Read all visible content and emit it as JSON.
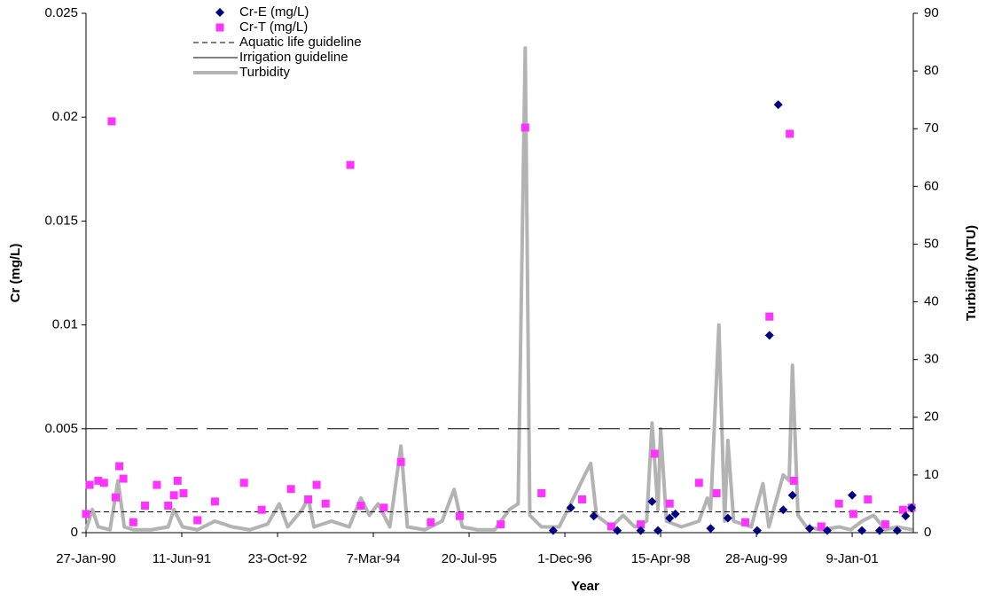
{
  "chart_data": {
    "type": "scatter",
    "x_label": "Year",
    "y_label": "Cr (mg/L)",
    "y2_label": "Turbidity (NTU)",
    "xlim": [
      "1990-01-27",
      "2001-11-24"
    ],
    "xticks": [
      {
        "value": "1990-01-27",
        "label": "27-Jan-90"
      },
      {
        "value": "1991-06-11",
        "label": "11-Jun-91"
      },
      {
        "value": "1992-10-23",
        "label": "23-Oct-92"
      },
      {
        "value": "1994-03-07",
        "label": "7-Mar-94"
      },
      {
        "value": "1995-07-20",
        "label": "20-Jul-95"
      },
      {
        "value": "1996-12-01",
        "label": "1-Dec-96"
      },
      {
        "value": "1998-04-15",
        "label": "15-Apr-98"
      },
      {
        "value": "1999-08-28",
        "label": "28-Aug-99"
      },
      {
        "value": "2001-01-09",
        "label": "9-Jan-01"
      }
    ],
    "ylim": [
      0,
      0.025
    ],
    "yticks": [
      0,
      0.005,
      0.01,
      0.015,
      0.02,
      0.025
    ],
    "y2lim": [
      0,
      90
    ],
    "y2ticks": [
      0,
      10,
      20,
      30,
      40,
      50,
      60,
      70,
      80,
      90
    ],
    "series": [
      {
        "name": "Cr-E (mg/L)",
        "kind": "scatter",
        "marker": "diamond",
        "color": "#000080",
        "x": [
          "1996-10-01",
          "1997-01-01",
          "1997-05-01",
          "1997-09-01",
          "1998-01-01",
          "1998-03-01",
          "1998-04-01",
          "1998-06-01",
          "1998-07-01",
          "1999-01-01",
          "1999-04-01",
          "1999-09-01",
          "1999-11-04",
          "1999-12-20",
          "2000-01-15",
          "2000-03-03",
          "2000-06-01",
          "2000-09-01",
          "2001-01-09",
          "2001-03-01",
          "2001-06-01",
          "2001-09-01",
          "2001-10-15",
          "2001-11-15"
        ],
        "values": [
          0.0001,
          0.0012,
          0.0008,
          0.0001,
          0.0001,
          0.0015,
          0.0001,
          0.0007,
          0.0009,
          0.0002,
          0.0007,
          0.0001,
          0.0095,
          0.0206,
          0.0011,
          0.0018,
          0.0002,
          0.0001,
          0.0018,
          0.0001,
          0.0001,
          0.0001,
          0.0008,
          0.0012
        ]
      },
      {
        "name": "Cr-T (mg/L)",
        "kind": "scatter",
        "marker": "square",
        "color": "#ff33ff",
        "x": [
          "1990-01-27",
          "1990-02-15",
          "1990-04-01",
          "1990-05-01",
          "1990-06-10",
          "1990-07-01",
          "1990-07-20",
          "1990-08-10",
          "1990-10-01",
          "1990-12-01",
          "1991-02-01",
          "1991-04-01",
          "1991-05-01",
          "1991-05-20",
          "1991-06-20",
          "1991-09-01",
          "1991-12-01",
          "1992-05-01",
          "1992-08-01",
          "1993-01-01",
          "1993-04-01",
          "1993-05-15",
          "1993-07-01",
          "1993-11-07",
          "1994-01-01",
          "1994-05-01",
          "1994-07-29",
          "1995-01-01",
          "1995-06-01",
          "1996-01-01",
          "1996-05-08",
          "1996-08-01",
          "1997-03-01",
          "1997-08-01",
          "1998-01-01",
          "1998-03-15",
          "1998-06-01",
          "1998-11-01",
          "1999-02-01",
          "1999-07-01",
          "1999-11-04",
          "2000-02-18",
          "2000-03-10",
          "2000-08-01",
          "2000-11-01",
          "2001-01-15",
          "2001-04-01",
          "2001-07-01",
          "2001-10-01",
          "2001-11-15"
        ],
        "values": [
          0.0009,
          0.0023,
          0.0025,
          0.0024,
          0.0198,
          0.0017,
          0.0032,
          0.0026,
          0.0005,
          0.0013,
          0.0023,
          0.0013,
          0.0018,
          0.0025,
          0.0019,
          0.0006,
          0.0015,
          0.0024,
          0.0011,
          0.0021,
          0.0016,
          0.0023,
          0.0014,
          0.0177,
          0.0013,
          0.0012,
          0.0034,
          0.0005,
          0.0008,
          0.0004,
          0.0195,
          0.0019,
          0.0016,
          0.0003,
          0.0004,
          0.0038,
          0.0014,
          0.0024,
          0.0019,
          0.0005,
          0.0104,
          0.0192,
          0.0025,
          0.0003,
          0.0014,
          0.0009,
          0.0016,
          0.0004,
          0.0011,
          0.0012
        ]
      },
      {
        "name": "Aquatic life guideline",
        "kind": "hline",
        "dash": "short",
        "color": "#000000",
        "value": 0.001
      },
      {
        "name": "Irrigation guideline",
        "kind": "hline",
        "dash": "long",
        "color": "#000000",
        "value": 0.005
      },
      {
        "name": "Turbidity",
        "kind": "line",
        "axis": "y2",
        "color": "#b3b3b3",
        "x": [
          "1990-01-27",
          "1990-03-01",
          "1990-04-01",
          "1990-06-01",
          "1990-07-13",
          "1990-08-15",
          "1990-10-01",
          "1991-01-01",
          "1991-04-01",
          "1991-05-01",
          "1991-06-15",
          "1991-09-01",
          "1991-12-01",
          "1992-03-01",
          "1992-06-01",
          "1992-09-01",
          "1992-11-01",
          "1992-12-15",
          "1993-03-01",
          "1993-04-01",
          "1993-05-01",
          "1993-08-01",
          "1993-11-01",
          "1994-01-01",
          "1994-02-15",
          "1994-04-01",
          "1994-06-01",
          "1994-07-29",
          "1994-09-01",
          "1994-12-01",
          "1995-03-01",
          "1995-05-03",
          "1995-06-15",
          "1995-09-01",
          "1995-12-01",
          "1996-02-15",
          "1996-04-01",
          "1996-05-08",
          "1996-06-01",
          "1996-08-01",
          "1996-11-01",
          "1997-01-15",
          "1997-03-15",
          "1997-04-15",
          "1997-05-15",
          "1997-08-01",
          "1997-10-01",
          "1997-12-01",
          "1998-02-01",
          "1998-03-01",
          "1998-04-01",
          "1998-04-15",
          "1998-05-15",
          "1998-08-01",
          "1998-11-01",
          "1998-12-15",
          "1999-01-01",
          "1999-02-13",
          "1999-03-15",
          "1999-04-01",
          "1999-05-01",
          "1999-08-01",
          "1999-10-01",
          "1999-11-01",
          "2000-01-15",
          "2000-02-15",
          "2000-03-03",
          "2000-04-01",
          "2000-05-15",
          "2000-08-01",
          "2000-11-01",
          "2001-01-01",
          "2001-03-01",
          "2001-05-01",
          "2001-07-01",
          "2001-09-01",
          "2001-11-20"
        ],
        "values": [
          0.5,
          4,
          1,
          0.5,
          9,
          1,
          0.5,
          0.5,
          1,
          4,
          1,
          0.5,
          2,
          1,
          0.5,
          1.5,
          5,
          1,
          4,
          6,
          1,
          2,
          1,
          6,
          3,
          5,
          1,
          15,
          1,
          0.5,
          2,
          7.5,
          1,
          0.5,
          0.5,
          4,
          5,
          84,
          3,
          1,
          1,
          6,
          10,
          12,
          3,
          1,
          3,
          1,
          2,
          19,
          4,
          18,
          2,
          1,
          2,
          6,
          4,
          36,
          2,
          16,
          2,
          1,
          8.5,
          1,
          10,
          9,
          29,
          3,
          1,
          0.5,
          1,
          0.5,
          2,
          3,
          0.5,
          1,
          0.5
        ]
      }
    ]
  }
}
